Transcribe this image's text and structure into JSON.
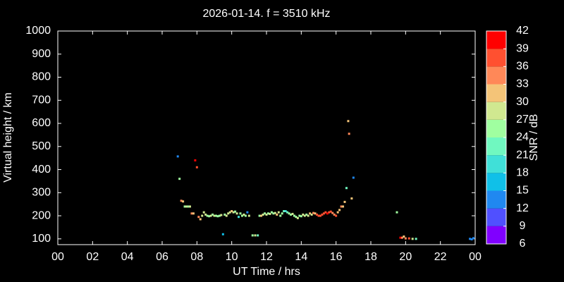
{
  "chart_data": {
    "type": "scatter",
    "title": "2026-01-14. f = 3510 kHz",
    "x_label": "UT Time / hrs",
    "y_label": "Virtual height / km",
    "colorbar_label": "SNR / dB",
    "xlim": [
      0,
      24
    ],
    "ylim": [
      75,
      1000
    ],
    "xticks": [
      {
        "value": 0,
        "label": "00"
      },
      {
        "value": 2,
        "label": "02"
      },
      {
        "value": 4,
        "label": "04"
      },
      {
        "value": 6,
        "label": "06"
      },
      {
        "value": 8,
        "label": "08"
      },
      10,
      12,
      14,
      16,
      18,
      20,
      22,
      {
        "value": 24,
        "label": "00"
      }
    ],
    "yticks": [
      100,
      200,
      300,
      400,
      500,
      600,
      700,
      800,
      900,
      1000
    ],
    "clim": [
      6,
      42
    ],
    "cticks": [
      6,
      9,
      12,
      15,
      18,
      21,
      24,
      27,
      30,
      33,
      36,
      39,
      42
    ],
    "colormap": [
      "#8000ff",
      "#5050ff",
      "#2088f0",
      "#10c0e8",
      "#40e0d8",
      "#70f8c0",
      "#a0ffa0",
      "#d0e890",
      "#f4c478",
      "#ff8858",
      "#ff5030",
      "#ff0000"
    ],
    "x": [
      6.9,
      7.0,
      7.1,
      7.2,
      7.3,
      7.4,
      7.5,
      7.6,
      7.7,
      7.8,
      7.9,
      8.0,
      8.1,
      8.2,
      8.3,
      8.4,
      8.5,
      8.6,
      8.7,
      8.8,
      8.9,
      9.0,
      9.1,
      9.2,
      9.3,
      9.4,
      9.5,
      9.6,
      9.7,
      9.8,
      9.9,
      10.0,
      10.1,
      10.2,
      10.3,
      10.4,
      10.5,
      10.6,
      10.7,
      10.8,
      10.9,
      11.0,
      11.2,
      11.35,
      11.5,
      11.6,
      11.7,
      11.8,
      11.9,
      12.0,
      12.1,
      12.2,
      12.3,
      12.4,
      12.5,
      12.6,
      12.7,
      12.8,
      12.9,
      13.0,
      13.1,
      13.2,
      13.3,
      13.4,
      13.5,
      13.6,
      13.7,
      13.8,
      13.9,
      14.0,
      14.1,
      14.2,
      14.3,
      14.4,
      14.5,
      14.6,
      14.7,
      14.8,
      14.9,
      15.0,
      15.1,
      15.2,
      15.3,
      15.4,
      15.5,
      15.6,
      15.7,
      15.8,
      15.9,
      16.0,
      16.1,
      16.2,
      16.3,
      16.4,
      16.5,
      16.6,
      16.7,
      16.75,
      16.9,
      17.0,
      19.5,
      19.7,
      19.8,
      19.9,
      20.0,
      20.2,
      20.4,
      20.6,
      23.7,
      23.8,
      23.9
    ],
    "values": [
      457,
      360,
      265,
      262,
      240,
      240,
      240,
      240,
      210,
      210,
      440,
      410,
      195,
      185,
      200,
      215,
      205,
      200,
      198,
      200,
      205,
      200,
      200,
      198,
      200,
      203,
      120,
      205,
      200,
      210,
      215,
      220,
      215,
      218,
      210,
      195,
      210,
      200,
      205,
      200,
      215,
      200,
      115,
      115,
      115,
      200,
      200,
      205,
      210,
      205,
      210,
      208,
      215,
      210,
      212,
      205,
      215,
      200,
      210,
      220,
      220,
      215,
      210,
      205,
      208,
      200,
      195,
      190,
      200,
      198,
      205,
      200,
      205,
      200,
      210,
      205,
      212,
      210,
      205,
      200,
      200,
      205,
      210,
      215,
      210,
      215,
      218,
      212,
      205,
      200,
      215,
      225,
      240,
      240,
      260,
      320,
      610,
      555,
      275,
      365,
      215,
      105,
      105,
      110,
      102,
      102,
      100,
      100,
      100,
      98,
      103
    ],
    "snr": [
      13,
      26,
      34,
      31,
      26,
      27,
      26,
      27,
      33,
      32,
      40,
      36,
      33,
      30,
      28,
      29,
      27,
      26,
      25,
      27,
      26,
      27,
      25,
      26,
      24,
      27,
      15,
      26,
      28,
      27,
      29,
      31,
      28,
      26,
      27,
      19,
      26,
      25,
      27,
      26,
      13,
      27,
      24,
      27,
      21,
      25,
      30,
      27,
      26,
      28,
      26,
      27,
      25,
      26,
      28,
      30,
      27,
      25,
      24,
      21,
      19,
      22,
      26,
      25,
      27,
      26,
      25,
      27,
      24,
      26,
      27,
      28,
      26,
      27,
      30,
      28,
      33,
      32,
      36,
      37,
      38,
      36,
      37,
      38,
      39,
      38,
      36,
      34,
      33,
      37,
      31,
      32,
      34,
      32,
      31,
      21,
      31,
      35,
      30,
      13,
      25,
      39,
      35,
      31,
      35,
      36,
      27,
      23,
      12,
      14,
      12
    ]
  }
}
